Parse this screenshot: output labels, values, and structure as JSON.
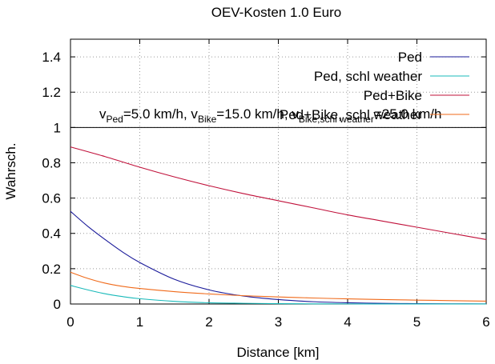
{
  "chart_data": {
    "type": "line",
    "title": "OEV-Kosten 1.0 Euro",
    "xlabel": "Distance [km]",
    "ylabel": "Wahrsch.",
    "xlim": [
      0,
      6
    ],
    "ylim": [
      0,
      1.5
    ],
    "x_ticks": [
      "0",
      "1",
      "2",
      "3",
      "4",
      "5",
      "6"
    ],
    "y_ticks": [
      "0",
      "0.2",
      "0.4",
      "0.6",
      "0.8",
      "1",
      "1.2",
      "1.4"
    ],
    "grid": true,
    "legend_position": "top-right",
    "annotation": {
      "v": "v",
      "ped_sub": "Ped",
      "ped_val": "=5.0 km/h, v",
      "bike_sub": "Bike",
      "bike_val": "=15.0 km/h, v",
      "bike2_sub": "Bike,schl weather",
      "bike2_val": "=25.0 km/h"
    },
    "series": [
      {
        "name": "Ped",
        "color": "#1a1a9a",
        "x": [
          0,
          0.25,
          0.5,
          0.75,
          1,
          1.5,
          2,
          2.5,
          3,
          3.5,
          4,
          4.5,
          5,
          5.5,
          6
        ],
        "y": [
          0.525,
          0.44,
          0.365,
          0.295,
          0.235,
          0.14,
          0.08,
          0.045,
          0.025,
          0.013,
          0.007,
          0.004,
          0.002,
          0.001,
          0.0005
        ]
      },
      {
        "name": "Ped, schl weather",
        "color": "#18b9b9",
        "x": [
          0,
          0.25,
          0.5,
          0.75,
          1,
          1.5,
          2,
          2.5,
          3,
          3.5,
          4,
          4.5,
          5,
          5.5,
          6
        ],
        "y": [
          0.105,
          0.08,
          0.058,
          0.042,
          0.03,
          0.015,
          0.007,
          0.004,
          0.002,
          0.001,
          0.0006,
          0.0003,
          0.0002,
          0.0001,
          0.0001
        ]
      },
      {
        "name": "Ped+Bike",
        "color": "#c0103a",
        "x": [
          0,
          0.5,
          1,
          1.5,
          2,
          2.5,
          3,
          3.5,
          4,
          4.5,
          5,
          5.5,
          6
        ],
        "y": [
          0.89,
          0.835,
          0.775,
          0.72,
          0.67,
          0.625,
          0.585,
          0.545,
          0.505,
          0.47,
          0.435,
          0.4,
          0.365
        ]
      },
      {
        "name": "Ped+Bike, schl weather",
        "color": "#f06a1a",
        "x": [
          0,
          0.25,
          0.5,
          0.75,
          1,
          1.5,
          2,
          2.5,
          3,
          3.5,
          4,
          4.5,
          5,
          5.5,
          6
        ],
        "y": [
          0.18,
          0.145,
          0.118,
          0.1,
          0.088,
          0.07,
          0.057,
          0.047,
          0.04,
          0.034,
          0.029,
          0.025,
          0.022,
          0.019,
          0.016
        ]
      }
    ]
  }
}
